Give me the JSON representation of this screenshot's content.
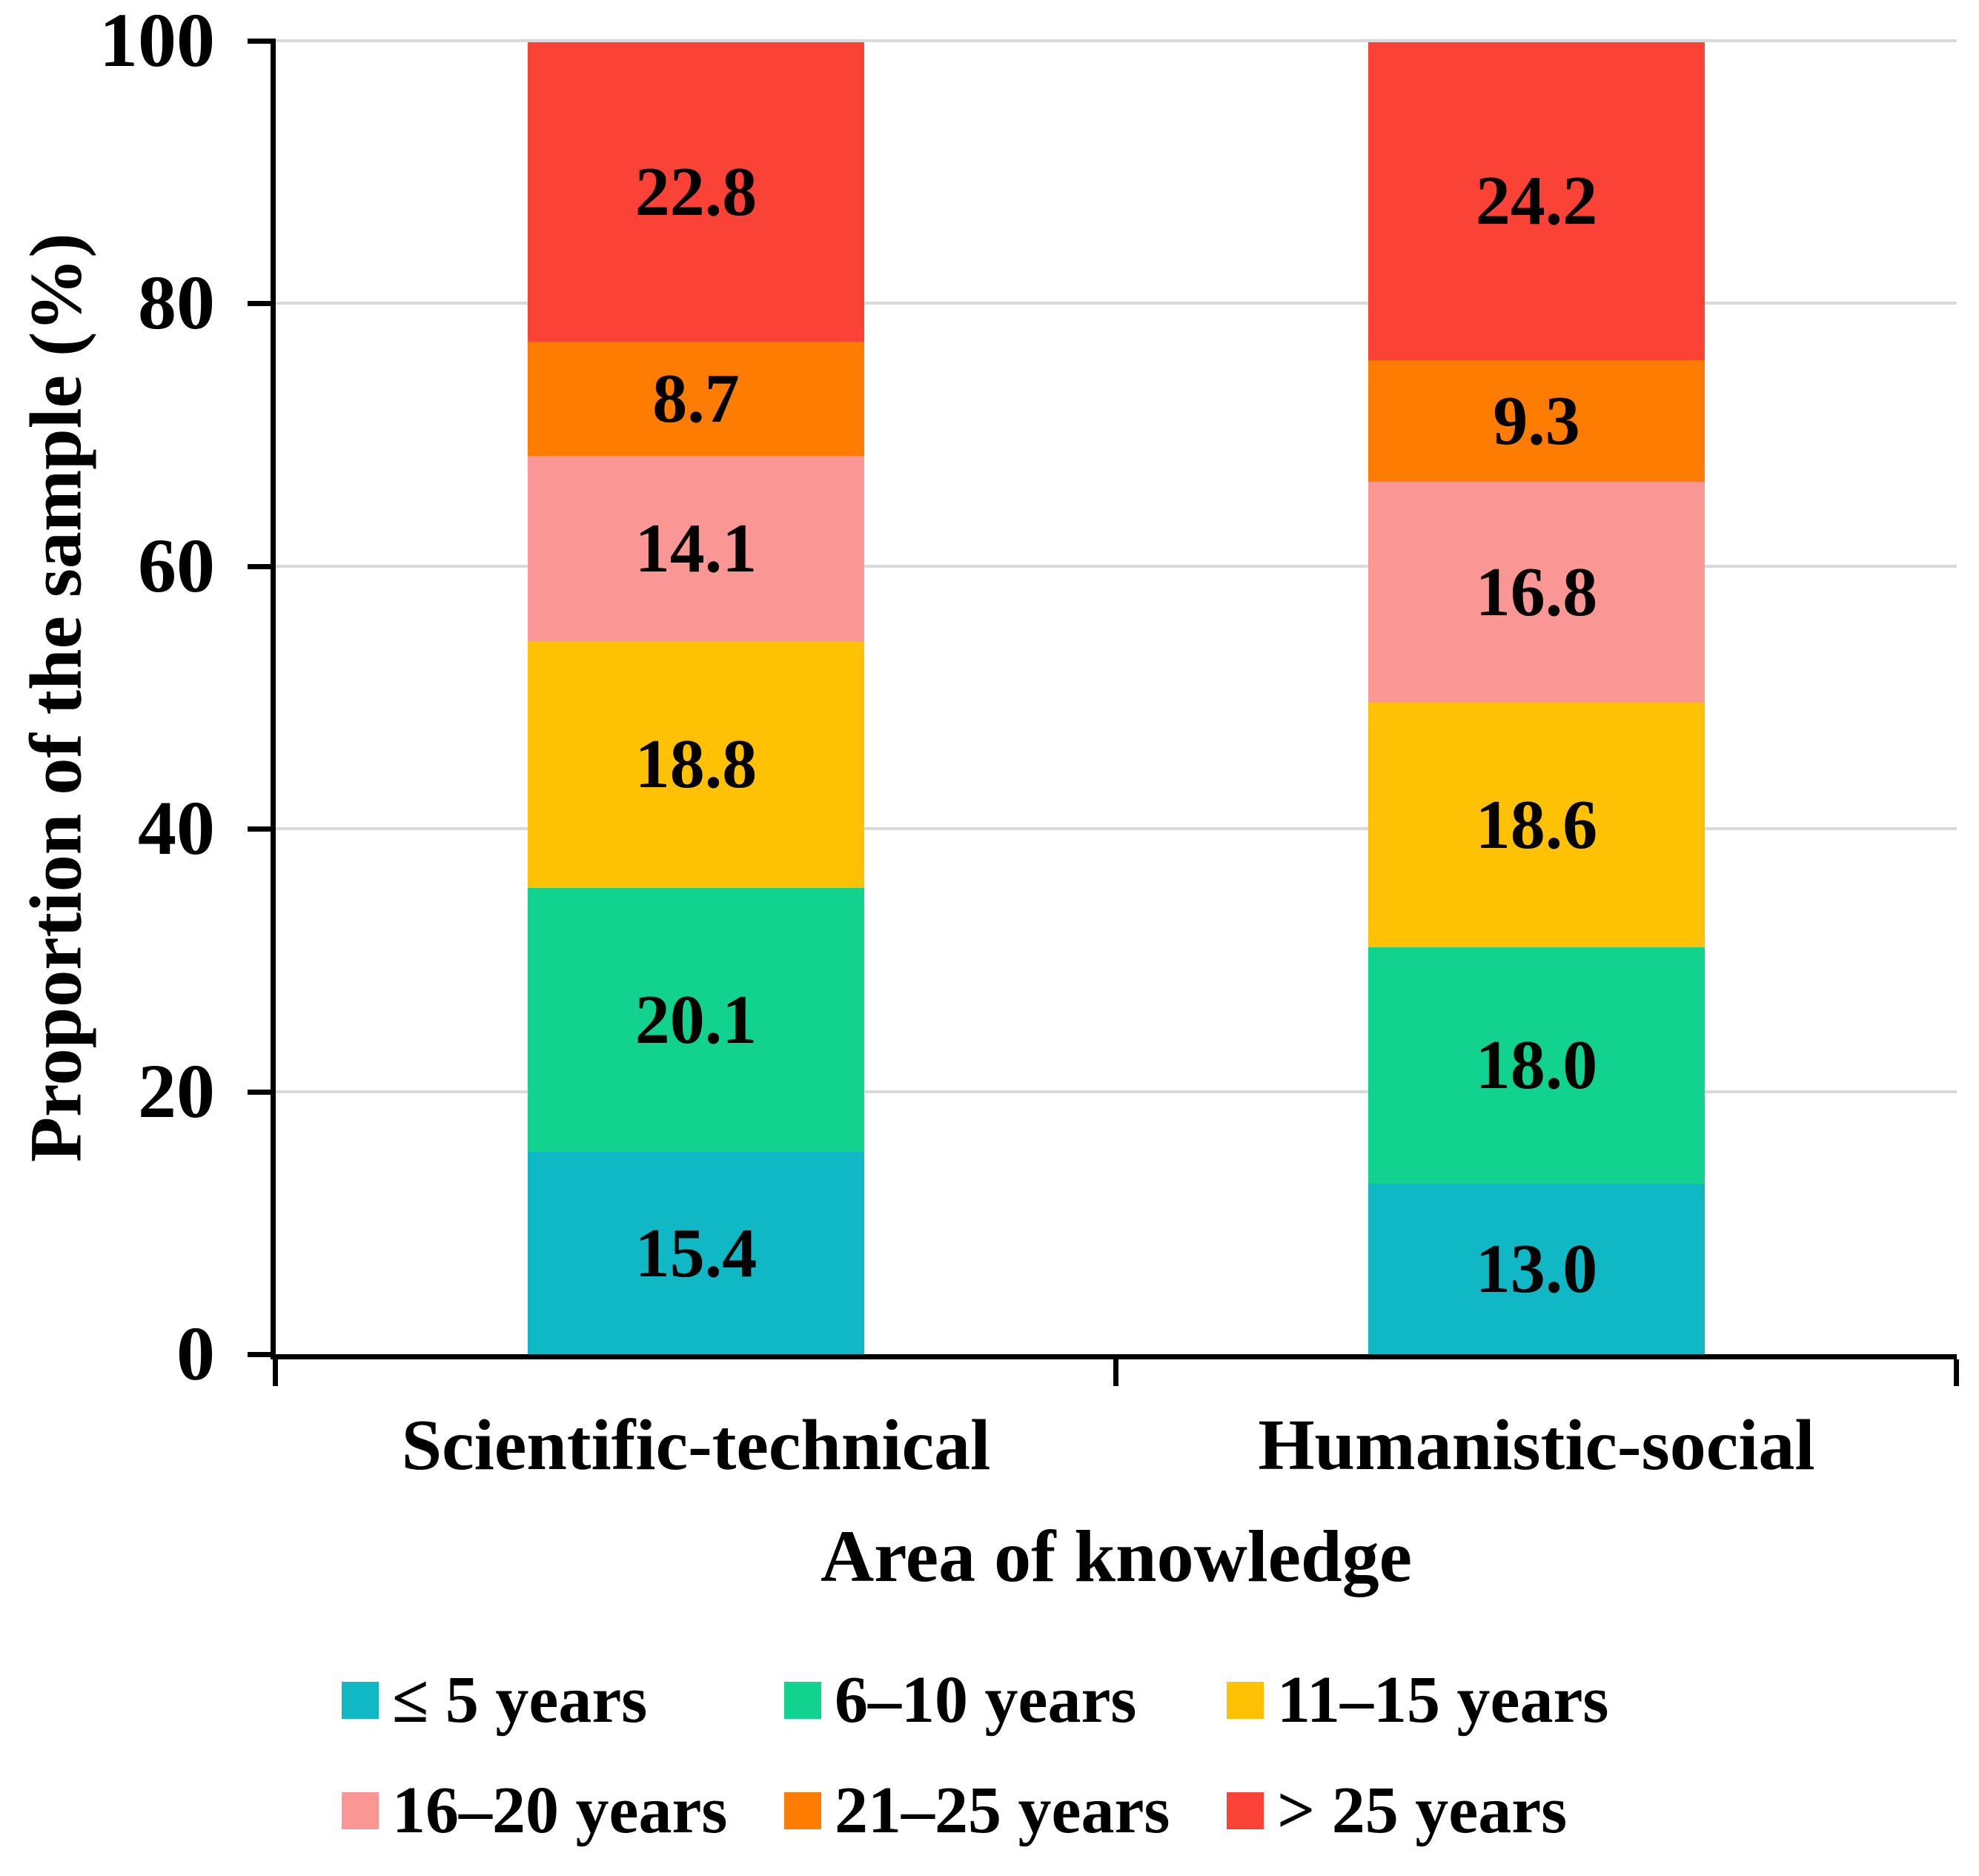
{
  "chart_data": {
    "type": "bar",
    "stacked": true,
    "categories": [
      "Scientific-technical",
      "Humanistic-social"
    ],
    "series": [
      {
        "name": "≤ 5 years",
        "color": "#10b7c4",
        "values": [
          15.4,
          13.0
        ]
      },
      {
        "name": "6–10 years",
        "color": "#12d290",
        "values": [
          20.1,
          18.0
        ]
      },
      {
        "name": "11–15 years",
        "color": "#fec104",
        "values": [
          18.8,
          18.6
        ]
      },
      {
        "name": "16–20 years",
        "color": "#fa9693",
        "values": [
          14.1,
          16.8
        ]
      },
      {
        "name": "21–25 years",
        "color": "#fe7c01",
        "values": [
          8.7,
          9.3
        ]
      },
      {
        "name": "> 25 years",
        "color": "#fb4236",
        "values": [
          22.8,
          24.2
        ]
      }
    ],
    "xlabel": "Area of knowledge",
    "ylabel": "Proportion of the sample (%)",
    "ylim": [
      0,
      100
    ],
    "yticks": [
      0,
      20,
      40,
      60,
      80,
      100
    ],
    "value_format": "0.0",
    "grid": "horizontal",
    "gridline_color": "#d9d9d9",
    "legend_position": "bottom"
  }
}
